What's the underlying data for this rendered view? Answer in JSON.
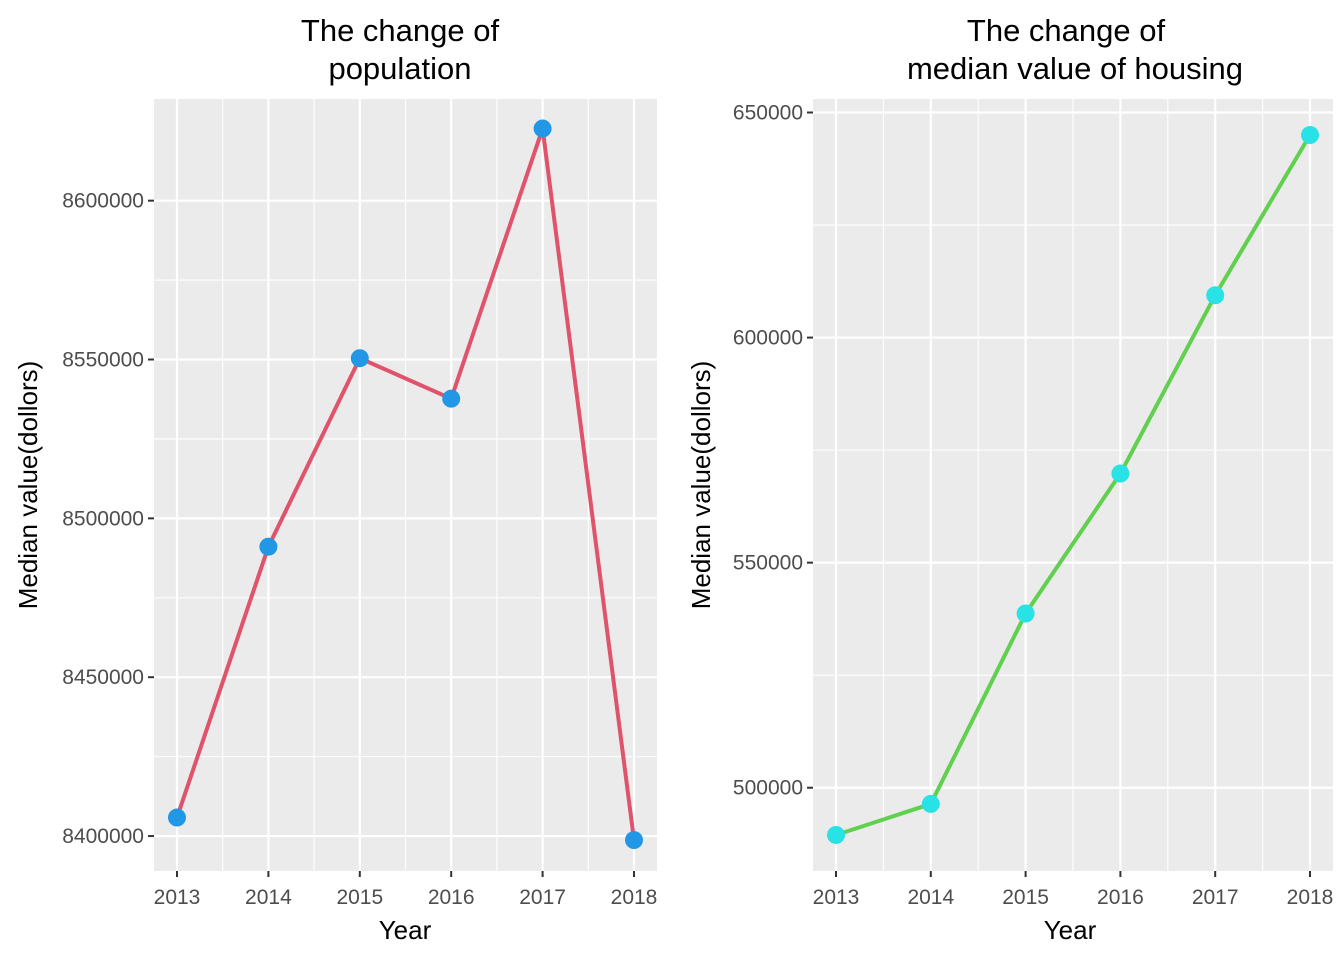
{
  "chart_data": [
    {
      "type": "line",
      "title_lines": [
        "The change of",
        "population"
      ],
      "xlabel": "Year",
      "ylabel": "Median value(dollors)",
      "x": [
        2013,
        2014,
        2015,
        2016,
        2017,
        2018
      ],
      "x_tick_labels": [
        "2013",
        "2014",
        "2015",
        "2016",
        "2017",
        "2018"
      ],
      "series": [
        {
          "values": [
            8405837,
            8491079,
            8550405,
            8537673,
            8622698,
            8398748
          ]
        }
      ],
      "ylim": [
        8389000,
        8632000
      ],
      "y_ticks": [
        8400000,
        8450000,
        8500000,
        8550000,
        8600000
      ],
      "y_tick_labels": [
        "8400000",
        "8450000",
        "8500000",
        "8550000",
        "8600000"
      ],
      "grid": true,
      "line_color": "#df536b",
      "point_color": "#2297e6"
    },
    {
      "type": "line",
      "title_lines": [
        "The change of",
        "median value of housing"
      ],
      "xlabel": "Year",
      "ylabel": "Median value(dollors)",
      "x": [
        2013,
        2014,
        2015,
        2016,
        2017,
        2018
      ],
      "x_tick_labels": [
        "2013",
        "2014",
        "2015",
        "2016",
        "2017",
        "2018"
      ],
      "series": [
        {
          "values": [
            489500,
            496400,
            538700,
            569800,
            609400,
            645000
          ]
        }
      ],
      "ylim": [
        481500,
        653000
      ],
      "y_ticks": [
        500000,
        550000,
        600000,
        650000
      ],
      "y_tick_labels": [
        "500000",
        "550000",
        "600000",
        "650000"
      ],
      "grid": true,
      "line_color": "#61d04f",
      "point_color": "#28e2e5"
    }
  ]
}
